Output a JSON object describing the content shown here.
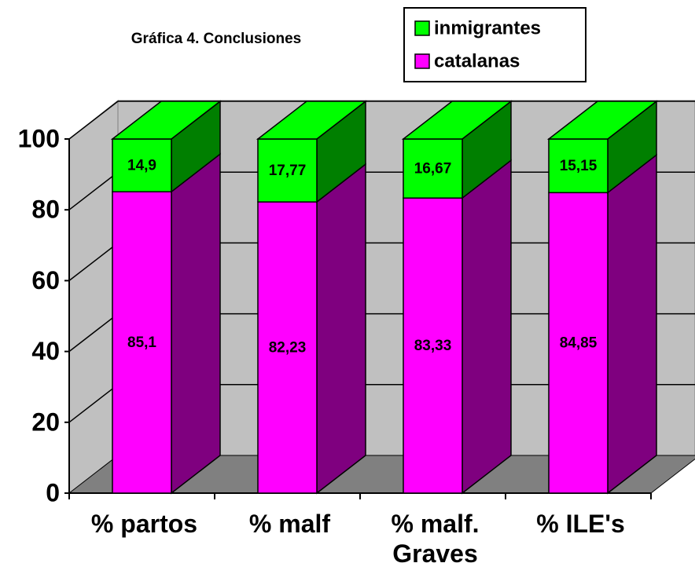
{
  "chart_data": {
    "type": "bar3d_stacked",
    "title": "Gráfica 4. Conclusiones",
    "categories": [
      "% partos",
      "% malf",
      "% malf. Graves",
      "% ILE's"
    ],
    "series": [
      {
        "name": "catalanas",
        "color": "#FF00FF",
        "values": [
          85.1,
          82.23,
          83.33,
          84.85
        ],
        "value_labels": [
          "85,1",
          "82,23",
          "83,33",
          "84,85"
        ]
      },
      {
        "name": "inmigrantes",
        "color": "#00FF00",
        "values": [
          14.9,
          17.77,
          16.67,
          15.15
        ],
        "value_labels": [
          "14,9",
          "17,77",
          "16,67",
          "15,15"
        ]
      }
    ],
    "ylim": [
      0,
      100
    ],
    "yticks": [
      0,
      20,
      40,
      60,
      80,
      100
    ],
    "grid": true,
    "legend": "top-right"
  }
}
